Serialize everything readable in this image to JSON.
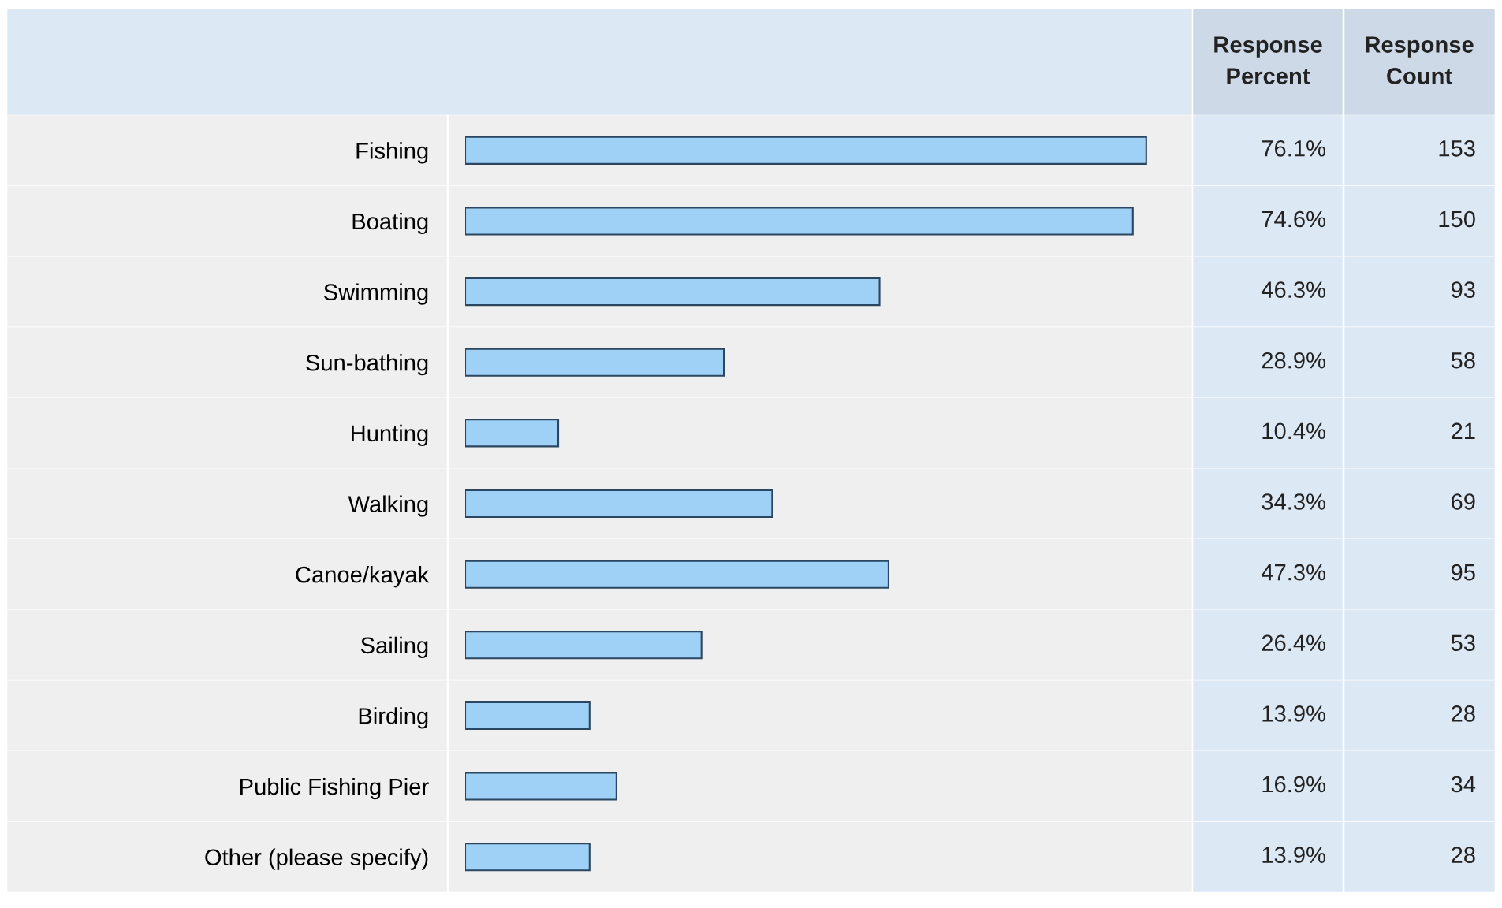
{
  "chart_data": {
    "type": "bar",
    "orientation": "horizontal",
    "tick_labels": "y",
    "categories": [
      "Fishing",
      "Boating",
      "Swimming",
      "Sun-bathing",
      "Hunting",
      "Walking",
      "Canoe/kayak",
      "Sailing",
      "Birding",
      "Public Fishing Pier",
      "Other (please specify)"
    ],
    "values": [
      76.1,
      74.6,
      46.3,
      28.9,
      10.4,
      34.3,
      47.3,
      26.4,
      13.9,
      16.9,
      13.9
    ],
    "value_labels": [
      "76.1%",
      "74.6%",
      "46.3%",
      "28.9%",
      "10.4%",
      "34.3%",
      "47.3%",
      "26.4%",
      "13.9%",
      "16.9%",
      "13.9%"
    ],
    "color": "#9fd0f5",
    "annotations": [
      "Response\nPercent",
      "Response\nCount",
      "153",
      "150",
      "93",
      "58",
      "21",
      "69",
      "95",
      "53",
      "28",
      "34",
      "28"
    ]
  }
}
